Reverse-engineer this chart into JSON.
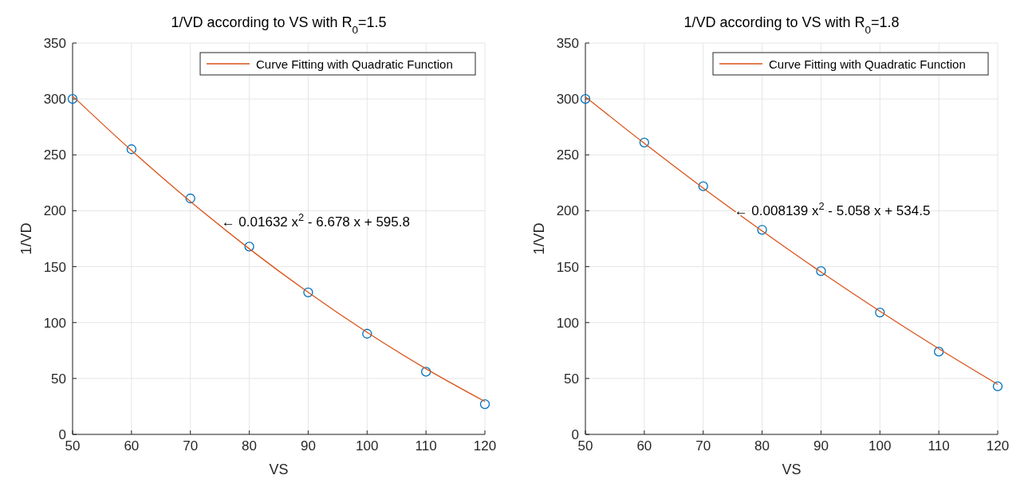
{
  "chart_data": [
    {
      "type": "scatter",
      "title": "1/VD according to VS with R$_{0}$=1.5",
      "xlabel": "VS",
      "ylabel": "1/VD",
      "xlim": [
        50,
        120
      ],
      "xticks": [
        50,
        60,
        70,
        80,
        90,
        100,
        110,
        120
      ],
      "ylim": [
        0,
        350
      ],
      "yticks": [
        0,
        50,
        100,
        150,
        200,
        250,
        300,
        350
      ],
      "grid": true,
      "legend": "top right",
      "marker": "circle",
      "x": [
        50,
        60,
        70,
        80,
        90,
        100,
        110,
        120
      ],
      "series": [
        {
          "type": "scatter",
          "color": "#0072bd",
          "values": [
            300,
            255,
            211,
            168,
            127,
            90,
            56,
            27
          ]
        },
        {
          "type": "line",
          "name": "Curve Fitting with Quadratic Function",
          "color": "#d95319",
          "marker": "none",
          "line_style": "solid",
          "x": [
            50,
            60,
            70,
            80,
            90,
            100,
            110,
            120
          ],
          "values": [
            302.7,
            253.9,
            208.3,
            166.0,
            127.0,
            91.2,
            58.7,
            29.4
          ]
        }
      ],
      "annotations": [
        {
          "text": "← 0.01632 x$^{2}$ - 6.678 x + 595.8",
          "x": 75,
          "y": 190
        }
      ]
    },
    {
      "type": "scatter",
      "title": "1/VD according to VS with R$_{0}$=1.8",
      "xlabel": "VS",
      "ylabel": "1/VD",
      "xlim": [
        50,
        120
      ],
      "xticks": [
        50,
        60,
        70,
        80,
        90,
        100,
        110,
        120
      ],
      "ylim": [
        0,
        350
      ],
      "yticks": [
        0,
        50,
        100,
        150,
        200,
        250,
        300,
        350
      ],
      "grid": true,
      "legend": "top right",
      "marker": "circle",
      "x": [
        50,
        60,
        70,
        80,
        90,
        100,
        110,
        120
      ],
      "series": [
        {
          "type": "scatter",
          "color": "#0072bd",
          "values": [
            300,
            261,
            222,
            183,
            146,
            109,
            74,
            43
          ]
        },
        {
          "type": "line",
          "name": "Curve Fitting with Quadratic Function",
          "color": "#d95319",
          "marker": "none",
          "line_style": "solid",
          "x": [
            50,
            60,
            70,
            80,
            90,
            100,
            110,
            120
          ],
          "values": [
            301.9,
            260.3,
            220.3,
            181.9,
            145.2,
            110.1,
            76.6,
            44.7
          ]
        }
      ],
      "annotations": [
        {
          "text": "← 0.008139 x$^{2}$ - 5.058 x + 534.5",
          "x": 75,
          "y": 200
        }
      ]
    }
  ]
}
